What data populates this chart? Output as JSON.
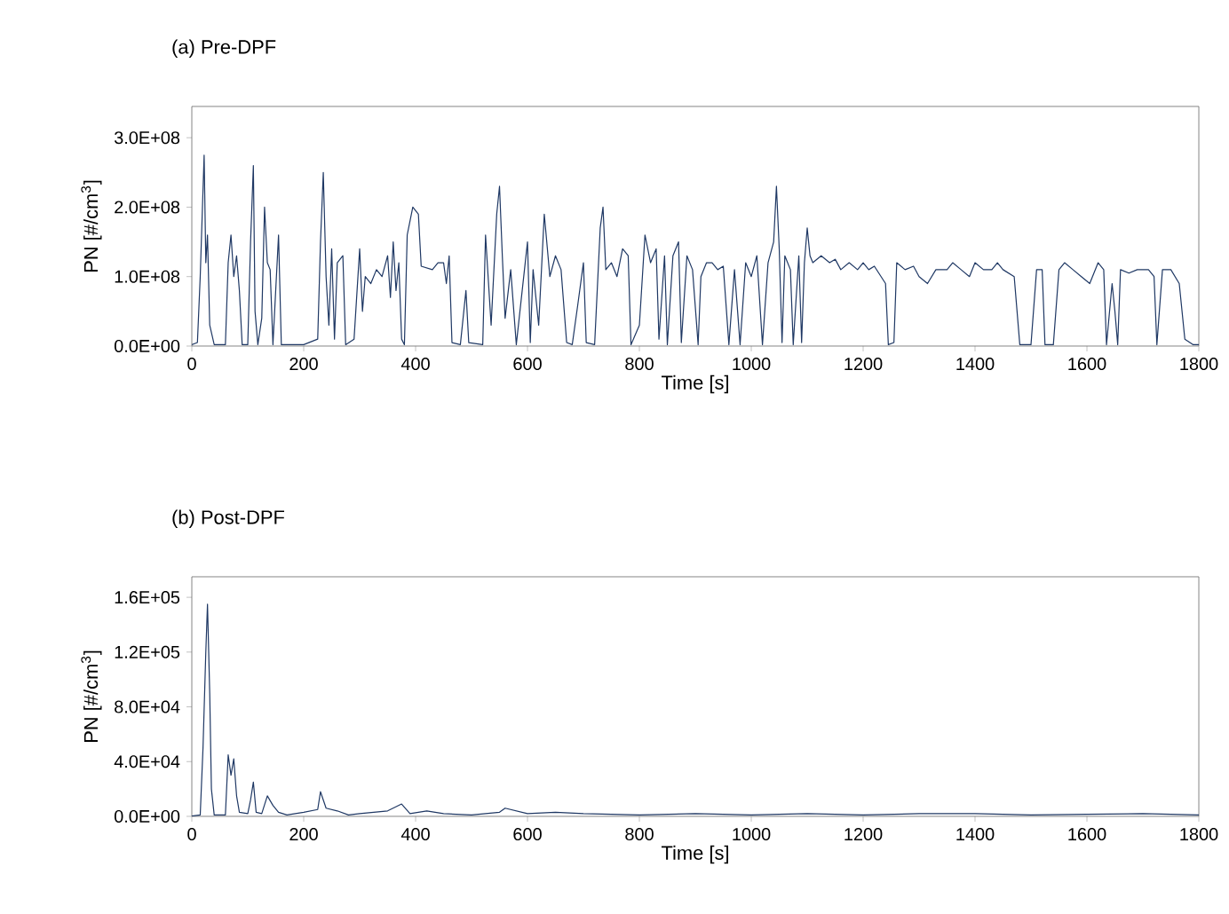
{
  "chart_data": [
    {
      "type": "line",
      "title": "(a) Pre-DPF",
      "xlabel": "Time [s]",
      "ylabel": "PN [#/cm$^{3}$]",
      "xlim": [
        0,
        1800
      ],
      "ylim": [
        0,
        345000000.0
      ],
      "xticks": [
        0,
        200,
        400,
        600,
        800,
        1000,
        1200,
        1400,
        1600,
        1800
      ],
      "yticks": [
        {
          "value": 0,
          "label": "0.0E+00"
        },
        {
          "value": 100000000.0,
          "label": "1.0E+08"
        },
        {
          "value": 200000000.0,
          "label": "2.0E+08"
        },
        {
          "value": 300000000.0,
          "label": "3.0E+08"
        }
      ],
      "x": [
        0,
        10,
        15,
        18,
        22,
        25,
        28,
        32,
        40,
        60,
        65,
        70,
        75,
        80,
        85,
        90,
        100,
        105,
        110,
        113,
        118,
        125,
        130,
        135,
        140,
        145,
        155,
        160,
        200,
        225,
        230,
        235,
        240,
        245,
        250,
        255,
        260,
        270,
        275,
        290,
        300,
        305,
        310,
        320,
        330,
        340,
        350,
        355,
        360,
        365,
        370,
        375,
        380,
        385,
        395,
        405,
        410,
        430,
        440,
        450,
        455,
        460,
        465,
        480,
        490,
        495,
        520,
        525,
        535,
        545,
        550,
        555,
        560,
        570,
        580,
        600,
        605,
        610,
        620,
        630,
        640,
        650,
        660,
        670,
        680,
        690,
        700,
        705,
        720,
        730,
        735,
        740,
        750,
        760,
        770,
        780,
        785,
        800,
        810,
        820,
        830,
        835,
        845,
        850,
        860,
        870,
        875,
        885,
        895,
        905,
        910,
        920,
        930,
        940,
        950,
        960,
        970,
        980,
        990,
        1000,
        1010,
        1020,
        1030,
        1040,
        1045,
        1050,
        1055,
        1060,
        1070,
        1075,
        1085,
        1090,
        1095,
        1100,
        1105,
        1110,
        1125,
        1140,
        1150,
        1160,
        1175,
        1190,
        1200,
        1210,
        1220,
        1240,
        1245,
        1255,
        1260,
        1275,
        1290,
        1300,
        1315,
        1330,
        1350,
        1360,
        1375,
        1390,
        1400,
        1415,
        1430,
        1440,
        1450,
        1470,
        1480,
        1500,
        1510,
        1520,
        1525,
        1540,
        1550,
        1560,
        1575,
        1590,
        1605,
        1620,
        1630,
        1635,
        1645,
        1650,
        1655,
        1660,
        1675,
        1690,
        1710,
        1720,
        1725,
        1735,
        1750,
        1765,
        1775,
        1790,
        1800
      ],
      "series": [
        {
          "color": "#1f3864",
          "values": [
            2000000.0,
            5000000.0,
            100000000.0,
            175000000.0,
            275000000.0,
            120000000.0,
            160000000.0,
            30000000.0,
            2000000.0,
            2000000.0,
            120000000.0,
            160000000.0,
            100000000.0,
            130000000.0,
            80000000.0,
            2000000.0,
            2000000.0,
            150000000.0,
            260000000.0,
            50000000.0,
            2000000.0,
            40000000.0,
            200000000.0,
            120000000.0,
            110000000.0,
            2000000.0,
            160000000.0,
            2000000.0,
            2000000.0,
            10000000.0,
            150000000.0,
            250000000.0,
            100000000.0,
            30000000.0,
            140000000.0,
            10000000.0,
            120000000.0,
            130000000.0,
            2000000.0,
            10000000.0,
            140000000.0,
            50000000.0,
            100000000.0,
            90000000.0,
            110000000.0,
            100000000.0,
            130000000.0,
            70000000.0,
            150000000.0,
            80000000.0,
            120000000.0,
            10000000.0,
            2000000.0,
            160000000.0,
            200000000.0,
            190000000.0,
            115000000.0,
            110000000.0,
            120000000.0,
            120000000.0,
            90000000.0,
            130000000.0,
            5000000.0,
            2000000.0,
            80000000.0,
            5000000.0,
            2000000.0,
            160000000.0,
            30000000.0,
            190000000.0,
            230000000.0,
            130000000.0,
            40000000.0,
            110000000.0,
            2000000.0,
            150000000.0,
            5000000.0,
            110000000.0,
            30000000.0,
            190000000.0,
            100000000.0,
            130000000.0,
            110000000.0,
            5000000.0,
            2000000.0,
            60000000.0,
            120000000.0,
            5000000.0,
            2000000.0,
            170000000.0,
            200000000.0,
            110000000.0,
            120000000.0,
            100000000.0,
            140000000.0,
            130000000.0,
            2000000.0,
            30000000.0,
            160000000.0,
            120000000.0,
            140000000.0,
            10000000.0,
            130000000.0,
            2000000.0,
            130000000.0,
            150000000.0,
            5000000.0,
            130000000.0,
            110000000.0,
            2000000.0,
            100000000.0,
            120000000.0,
            120000000.0,
            110000000.0,
            115000000.0,
            2000000.0,
            110000000.0,
            2000000.0,
            120000000.0,
            100000000.0,
            130000000.0,
            2000000.0,
            120000000.0,
            150000000.0,
            230000000.0,
            140000000.0,
            5000000.0,
            130000000.0,
            110000000.0,
            2000000.0,
            130000000.0,
            5000000.0,
            120000000.0,
            170000000.0,
            130000000.0,
            120000000.0,
            130000000.0,
            120000000.0,
            125000000.0,
            110000000.0,
            120000000.0,
            110000000.0,
            120000000.0,
            110000000.0,
            115000000.0,
            90000000.0,
            2000000.0,
            5000000.0,
            120000000.0,
            110000000.0,
            115000000.0,
            100000000.0,
            90000000.0,
            110000000.0,
            110000000.0,
            120000000.0,
            110000000.0,
            100000000.0,
            120000000.0,
            110000000.0,
            110000000.0,
            120000000.0,
            110000000.0,
            100000000.0,
            2000000.0,
            2000000.0,
            110000000.0,
            110000000.0,
            2000000.0,
            2000000.0,
            110000000.0,
            120000000.0,
            110000000.0,
            100000000.0,
            90000000.0,
            120000000.0,
            110000000.0,
            2000000.0,
            90000000.0,
            50000000.0,
            2000000.0,
            110000000.0,
            105000000.0,
            110000000.0,
            110000000.0,
            100000000.0,
            2000000.0,
            110000000.0,
            110000000.0,
            90000000.0,
            10000000.0,
            2000000.0,
            2000000.0
          ]
        }
      ]
    },
    {
      "type": "line",
      "title": "(b) Post-DPF",
      "xlabel": "Time [s]",
      "ylabel": "PN [#/cm$^{3}$]",
      "xlim": [
        0,
        1800
      ],
      "ylim": [
        0,
        175000.0
      ],
      "xticks": [
        0,
        200,
        400,
        600,
        800,
        1000,
        1200,
        1400,
        1600,
        1800
      ],
      "yticks": [
        {
          "value": 0,
          "label": "0.0E+00"
        },
        {
          "value": 40000.0,
          "label": "4.0E+04"
        },
        {
          "value": 80000.0,
          "label": "8.0E+04"
        },
        {
          "value": 120000.0,
          "label": "1.2E+05"
        },
        {
          "value": 160000.0,
          "label": "1.6E+05"
        }
      ],
      "x": [
        0,
        15,
        20,
        25,
        28,
        32,
        35,
        40,
        60,
        65,
        70,
        75,
        80,
        85,
        100,
        105,
        110,
        115,
        125,
        135,
        145,
        155,
        170,
        200,
        225,
        230,
        240,
        260,
        280,
        300,
        350,
        375,
        390,
        420,
        450,
        500,
        550,
        560,
        600,
        650,
        700,
        800,
        900,
        1000,
        1100,
        1200,
        1300,
        1400,
        1500,
        1600,
        1700,
        1800
      ],
      "series": [
        {
          "color": "#1f3864",
          "values": [
            200,
            1000,
            50000,
            120000,
            155000,
            90000,
            20000,
            1000,
            1000,
            45000,
            30000,
            42000,
            15000,
            3000,
            2000,
            12000,
            25000,
            3000,
            2000,
            15000,
            8000,
            3000,
            1000,
            3000,
            5000,
            18000,
            6000,
            4000,
            1000,
            2000,
            4000,
            9000,
            2000,
            4000,
            2000,
            1000,
            3000,
            6000,
            2000,
            3000,
            2000,
            1000,
            2000,
            1000,
            2000,
            1000,
            2000,
            2000,
            1000,
            1500,
            2000,
            1000
          ]
        }
      ]
    }
  ]
}
